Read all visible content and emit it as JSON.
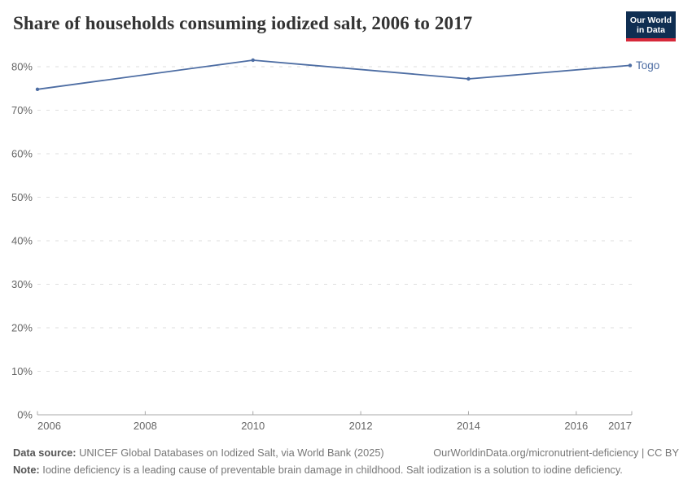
{
  "header": {
    "title": "Share of households consuming iodized salt, 2006 to 2017",
    "logo": {
      "line1": "Our World",
      "line2": "in Data",
      "bg_color": "#0f2e52",
      "accent_color": "#d62839"
    }
  },
  "chart_data": {
    "type": "line",
    "title": "Share of households consuming iodized salt, 2006 to 2017",
    "xlabel": "",
    "ylabel": "",
    "xlim": [
      2006,
      2017
    ],
    "ylim": [
      0,
      80
    ],
    "x_ticks": [
      2006,
      2008,
      2010,
      2012,
      2014,
      2016,
      2017
    ],
    "y_ticks": [
      0,
      10,
      20,
      30,
      40,
      50,
      60,
      70,
      80
    ],
    "y_tick_suffix": "%",
    "grid": "horizontal-dashed",
    "legend_position": "end-of-line",
    "series": [
      {
        "name": "Togo",
        "color": "#4d6da3",
        "x": [
          2006,
          2010,
          2014,
          2017
        ],
        "values": [
          74.8,
          81.5,
          77.2,
          80.3
        ]
      }
    ],
    "colors": {
      "gridline": "#dedede",
      "axis": "#a8a8a8",
      "tick_label": "#666666"
    }
  },
  "footer": {
    "source_label": "Data source:",
    "source_text": " UNICEF Global Databases on Iodized Salt, via World Bank (2025)",
    "link": "OurWorldinData.org/micronutrient-deficiency | CC BY",
    "note_label": "Note:",
    "note_text": " Iodine deficiency is a leading cause of preventable brain damage in childhood. Salt iodization is a solution to iodine deficiency."
  }
}
